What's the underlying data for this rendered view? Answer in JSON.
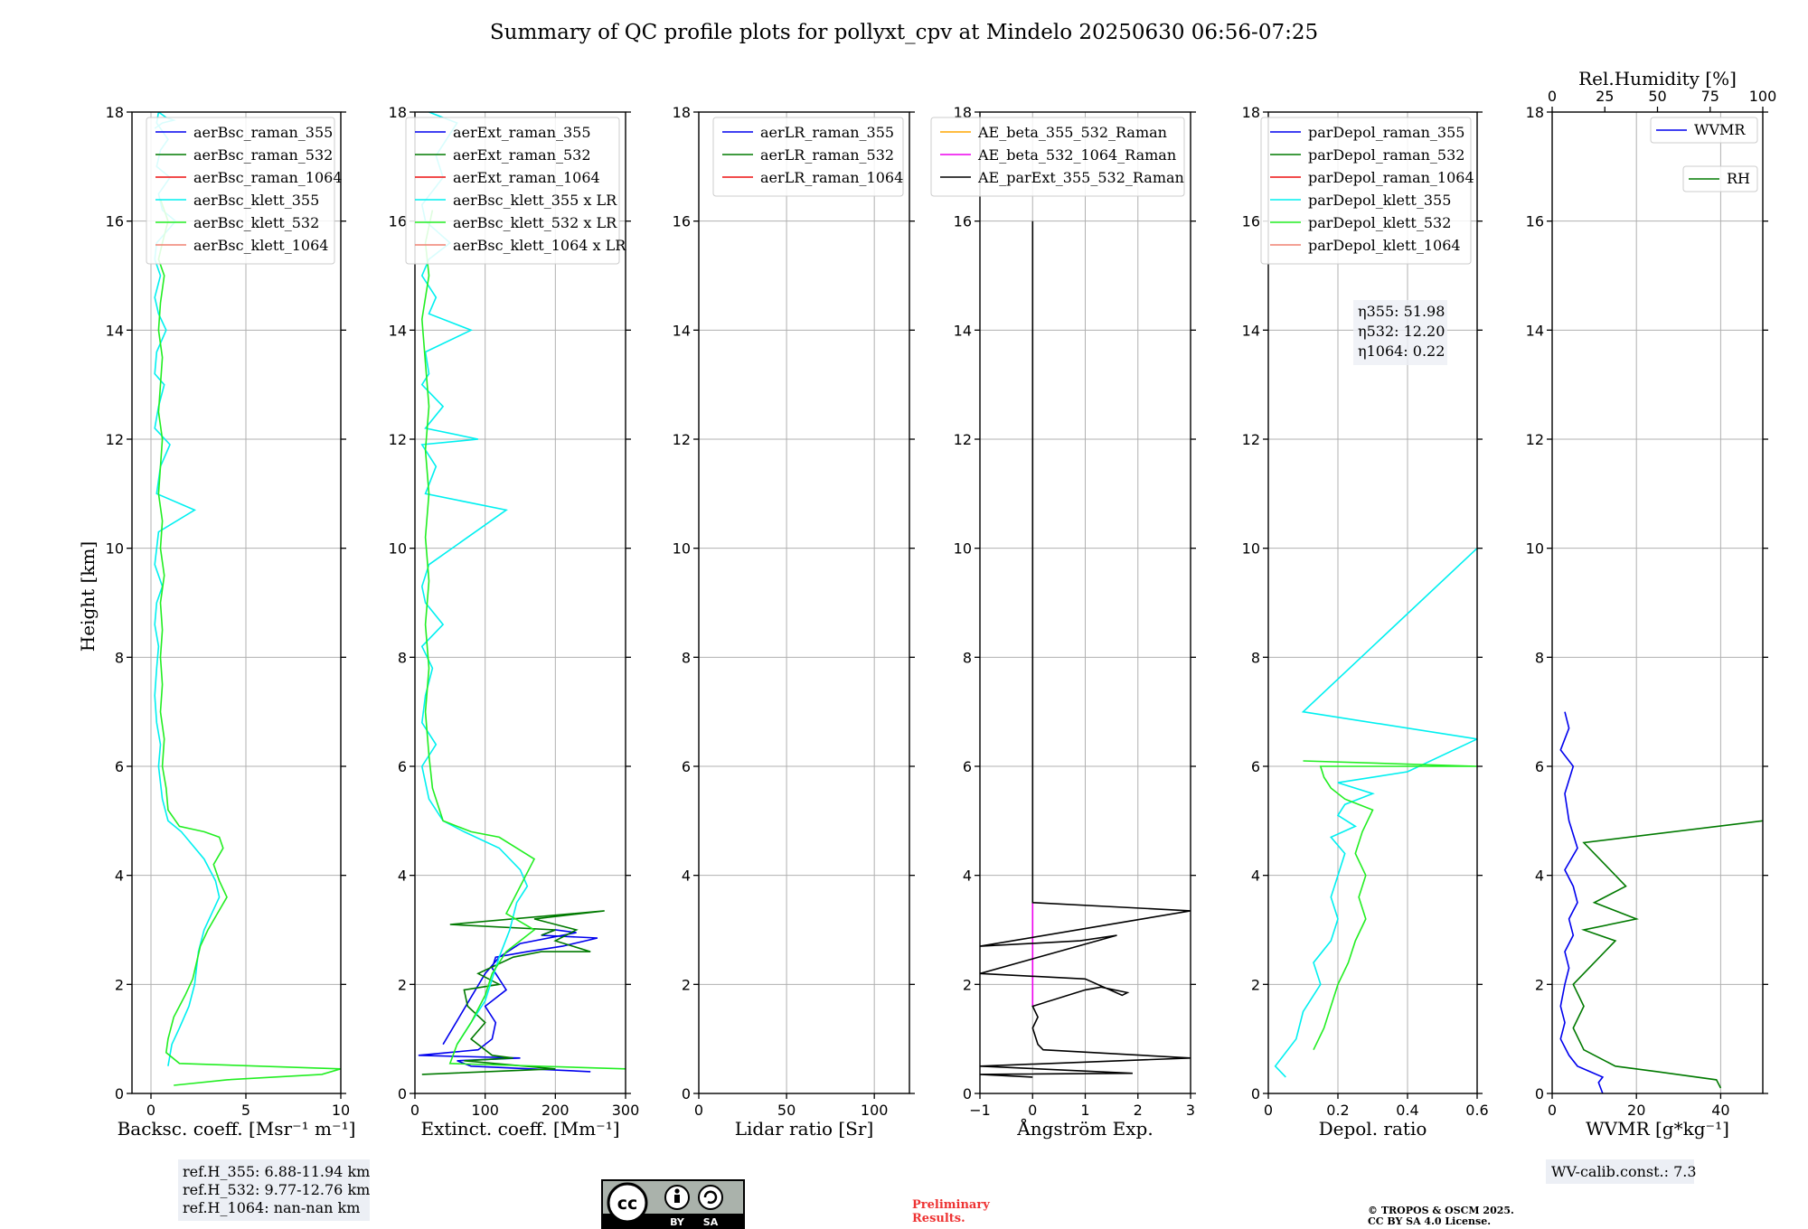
{
  "title": "Summary of QC profile plots for pollyxt_cpv at Mindelo 20250630 06:56-07:25",
  "colors": {
    "blue": "#0000ee",
    "green": "#007a00",
    "red": "#ee1111",
    "cyan": "#00f0f0",
    "lime": "#22ee22",
    "salmon": "#f08070",
    "orange": "#ffa500",
    "magenta": "#ee00ee",
    "black": "#000000"
  },
  "footer": {
    "ref_heights": [
      "ref.H_355: 6.88-11.94 km",
      "ref.H_532: 9.77-12.76 km",
      "ref.H_1064: nan-nan km"
    ],
    "cc_logo": {
      "cc": "cc",
      "by": "BY",
      "sa": "SA"
    },
    "preliminary": [
      "Preliminary",
      "Results."
    ],
    "copyright": [
      "© TROPOS & OSCM 2025.",
      "CC BY SA 4.0 License."
    ],
    "wv_calib": "WV-calib.const.: 7.3"
  },
  "chart_data": [
    {
      "type": "line",
      "ylabel": "Height [km]",
      "xlabel": "Backsc. coeff. [Msr$^{-1}$ m$^{-1}$]",
      "xlabel_display": "Backsc. coeff. [Msr⁻¹ m⁻¹]",
      "xlim": [
        -1,
        10
      ],
      "ylim": [
        0,
        18
      ],
      "xticks": [
        0,
        5,
        10
      ],
      "yticks": [
        0,
        2,
        4,
        6,
        8,
        10,
        12,
        14,
        16,
        18
      ],
      "legend": "top-right",
      "series": [
        {
          "name": "aerBsc_raman_355",
          "color": "blue",
          "x": [],
          "y": []
        },
        {
          "name": "aerBsc_raman_532",
          "color": "green",
          "x": [],
          "y": []
        },
        {
          "name": "aerBsc_raman_1064",
          "color": "red",
          "x": [],
          "y": []
        },
        {
          "name": "aerBsc_klett_355",
          "color": "cyan",
          "x": [
            0.9,
            1.1,
            1.5,
            2.0,
            2.3,
            2.4,
            2.5,
            2.8,
            3.2,
            3.6,
            3.4,
            2.8,
            1.6,
            0.9,
            0.6,
            0.4,
            0.5,
            0.3,
            0.2,
            0.3,
            0.4,
            0.2,
            0.3,
            0.6,
            0.2,
            0.4,
            2.3,
            0.3,
            0.5,
            1.0,
            0.2,
            0.4,
            0.7,
            0.2,
            0.3,
            0.8,
            0.4,
            0.2,
            0.5,
            0.2,
            0.3,
            1.3,
            0.6,
            0.4,
            1.0,
            0.3,
            0.5,
            0.9,
            0.3,
            0.4,
            0.6,
            0.8,
            1.2,
            0.6,
            0.2
          ],
          "y": [
            0.5,
            0.9,
            1.2,
            1.6,
            2.0,
            2.3,
            2.6,
            3.0,
            3.3,
            3.6,
            3.9,
            4.3,
            4.8,
            5.0,
            5.4,
            6.0,
            6.4,
            6.8,
            7.3,
            7.8,
            8.2,
            8.6,
            9.0,
            9.3,
            9.7,
            10.3,
            10.7,
            11.0,
            11.5,
            11.9,
            12.2,
            12.6,
            13.0,
            13.2,
            13.6,
            14.0,
            14.3,
            14.6,
            15.0,
            15.3,
            15.6,
            16.0,
            16.2,
            16.5,
            16.8,
            17.0,
            17.3,
            17.5,
            17.8,
            18.0,
            17.95,
            17.9,
            17.85,
            17.8,
            17.7
          ]
        },
        {
          "name": "aerBsc_klett_532",
          "color": "lime",
          "x": [
            1.2,
            4.0,
            9.0,
            10.0,
            1.5,
            0.8,
            0.9,
            1.2,
            1.8,
            2.2,
            2.4,
            2.6,
            3.0,
            3.5,
            4.0,
            3.6,
            3.3,
            3.8,
            3.6,
            2.8,
            1.5,
            0.9,
            0.8,
            0.6,
            0.7,
            0.5,
            0.6,
            0.5,
            0.6,
            0.5,
            0.7,
            0.5,
            0.6,
            0.4,
            0.5,
            0.6,
            0.4,
            0.5,
            0.6,
            0.4,
            0.5,
            0.7,
            0.4,
            0.6,
            0.9,
            0.5
          ],
          "y": [
            0.15,
            0.25,
            0.35,
            0.45,
            0.55,
            0.75,
            1.0,
            1.4,
            1.8,
            2.1,
            2.4,
            2.7,
            3.0,
            3.3,
            3.6,
            3.9,
            4.2,
            4.5,
            4.7,
            4.8,
            4.9,
            5.2,
            5.6,
            6.0,
            6.5,
            7.0,
            7.5,
            8.0,
            8.5,
            9.0,
            9.5,
            10.0,
            10.5,
            11.0,
            11.5,
            12.0,
            12.5,
            13.0,
            13.5,
            14.0,
            14.5,
            15.0,
            15.3,
            15.6,
            16.0,
            16.4
          ]
        },
        {
          "name": "aerBsc_klett_1064",
          "color": "salmon",
          "x": [],
          "y": []
        }
      ]
    },
    {
      "type": "line",
      "xlabel": "Extinct. coeff. [Mm$^{-1}$]",
      "xlabel_display": "Extinct. coeff. [Mm⁻¹]",
      "xlim": [
        0,
        300
      ],
      "ylim": [
        0,
        18
      ],
      "xticks": [
        0,
        100,
        200,
        300
      ],
      "yticks": [
        0,
        2,
        4,
        6,
        8,
        10,
        12,
        14,
        16,
        18
      ],
      "legend": "top-right",
      "series": [
        {
          "name": "aerExt_raman_355",
          "color": "blue",
          "x": [
            250,
            80,
            60,
            150,
            5,
            90,
            110,
            115,
            100,
            130,
            120,
            110,
            115,
            160,
            210,
            260,
            180,
            200,
            230,
            150,
            120,
            100,
            40
          ],
          "y": [
            0.4,
            0.5,
            0.6,
            0.65,
            0.7,
            0.8,
            1.0,
            1.3,
            1.6,
            1.9,
            2.1,
            2.3,
            2.5,
            2.6,
            2.7,
            2.85,
            2.9,
            3.0,
            2.95,
            2.75,
            2.5,
            2.2,
            0.9
          ]
        },
        {
          "name": "aerExt_raman_532",
          "color": "green",
          "x": [
            10,
            200,
            70,
            140,
            110,
            80,
            100,
            75,
            70,
            120,
            90,
            140,
            180,
            250,
            200,
            230,
            170,
            270,
            50,
            200,
            180
          ],
          "y": [
            0.35,
            0.45,
            0.6,
            0.65,
            0.7,
            1.0,
            1.3,
            1.6,
            1.9,
            2.0,
            2.2,
            2.5,
            2.6,
            2.6,
            2.8,
            3.0,
            3.2,
            3.35,
            3.1,
            3.0,
            2.9
          ]
        },
        {
          "name": "aerExt_raman_1064",
          "color": "red",
          "x": [],
          "y": []
        },
        {
          "name": "aerBsc_klett_355 x LR",
          "color": "cyan",
          "x": [
            60,
            80,
            100,
            110,
            120,
            135,
            145,
            160,
            150,
            120,
            70,
            40,
            20,
            10,
            30,
            10,
            15,
            25,
            10,
            40,
            15,
            10,
            20,
            130,
            15,
            30,
            10,
            90,
            15,
            40,
            10,
            20,
            15,
            80,
            20,
            30,
            10,
            20,
            50,
            15,
            10,
            40,
            30,
            60,
            20
          ],
          "y": [
            0.9,
            1.3,
            1.7,
            2.1,
            2.5,
            3.0,
            3.5,
            3.8,
            4.1,
            4.5,
            4.8,
            5.0,
            5.4,
            6.0,
            6.4,
            6.8,
            7.3,
            7.8,
            8.2,
            8.6,
            9.0,
            9.3,
            9.7,
            10.7,
            11.0,
            11.5,
            11.9,
            12.0,
            12.2,
            12.6,
            13.0,
            13.2,
            13.6,
            14.0,
            14.3,
            14.6,
            15.0,
            15.3,
            15.6,
            16.0,
            16.3,
            16.8,
            17.2,
            17.8,
            18.0
          ]
        },
        {
          "name": "aerBsc_klett_532 x LR",
          "color": "lime",
          "x": [
            300,
            50,
            60,
            80,
            100,
            110,
            130,
            170,
            130,
            150,
            170,
            120,
            80,
            40,
            25,
            20,
            15,
            20,
            15,
            20,
            15,
            20,
            15,
            20,
            15,
            10,
            20,
            15,
            25
          ],
          "y": [
            0.45,
            0.55,
            0.9,
            1.3,
            1.8,
            2.2,
            2.6,
            3.0,
            3.3,
            3.8,
            4.3,
            4.7,
            4.8,
            5.0,
            5.6,
            6.2,
            7.0,
            7.8,
            8.6,
            9.4,
            10.2,
            11.0,
            11.8,
            12.6,
            13.4,
            14.2,
            15.0,
            15.6,
            16.2
          ]
        },
        {
          "name": "aerBsc_klett_1064 x LR",
          "color": "salmon",
          "x": [],
          "y": []
        }
      ]
    },
    {
      "type": "line",
      "xlabel": "Lidar ratio [Sr]",
      "xlim": [
        0,
        120
      ],
      "ylim": [
        0,
        18
      ],
      "xticks": [
        0,
        50,
        100
      ],
      "yticks": [
        0,
        2,
        4,
        6,
        8,
        10,
        12,
        14,
        16,
        18
      ],
      "legend": "top-right",
      "series": [
        {
          "name": "aerLR_raman_355",
          "color": "blue",
          "x": [],
          "y": []
        },
        {
          "name": "aerLR_raman_532",
          "color": "green",
          "x": [],
          "y": []
        },
        {
          "name": "aerLR_raman_1064",
          "color": "red",
          "x": [],
          "y": []
        }
      ]
    },
    {
      "type": "line",
      "xlabel": "Ångström Exp.",
      "xlim": [
        -1,
        3
      ],
      "ylim": [
        0,
        18
      ],
      "xticks": [
        -1,
        0,
        1,
        2,
        3
      ],
      "yticks": [
        0,
        2,
        4,
        6,
        8,
        10,
        12,
        14,
        16,
        18
      ],
      "legend": "top-right",
      "series": [
        {
          "name": "AE_beta_355_532_Raman",
          "color": "orange",
          "x": [],
          "y": []
        },
        {
          "name": "AE_beta_532_1064_Raman",
          "color": "magenta",
          "x": [
            0,
            0,
            0
          ],
          "y": [
            1.6,
            2.5,
            3.5
          ]
        },
        {
          "name": "AE_parExt_355_532_Raman",
          "color": "black",
          "x": [
            0,
            -1,
            1.9,
            -1,
            3,
            0.2,
            0.1,
            0.0,
            0.1,
            0.0,
            1.0,
            1.3,
            1.8,
            1.7,
            1.0,
            -1,
            1.6,
            0.9,
            -1,
            3,
            0,
            0,
            0
          ],
          "y": [
            0.3,
            0.35,
            0.37,
            0.5,
            0.65,
            0.8,
            0.9,
            1.2,
            1.4,
            1.6,
            1.9,
            1.95,
            1.85,
            1.8,
            2.1,
            2.2,
            2.9,
            2.8,
            2.7,
            3.35,
            3.5,
            10.0,
            16.0
          ]
        }
      ]
    },
    {
      "type": "line",
      "xlabel": "Depol. ratio",
      "xlim": [
        0,
        0.6
      ],
      "ylim": [
        0,
        18
      ],
      "xticks": [
        0.0,
        0.2,
        0.4,
        0.6
      ],
      "yticks": [
        0,
        2,
        4,
        6,
        8,
        10,
        12,
        14,
        16,
        18
      ],
      "legend": "top-right",
      "annotation": [
        "η355: 51.98",
        "η532: 12.20",
        "η1064: 0.22"
      ],
      "series": [
        {
          "name": "parDepol_raman_355",
          "color": "blue",
          "x": [],
          "y": []
        },
        {
          "name": "parDepol_raman_532",
          "color": "green",
          "x": [],
          "y": []
        },
        {
          "name": "parDepol_raman_1064",
          "color": "red",
          "x": [],
          "y": []
        },
        {
          "name": "parDepol_klett_355",
          "color": "cyan",
          "x": [
            0.05,
            0.02,
            0.08,
            0.1,
            0.15,
            0.13,
            0.18,
            0.2,
            0.18,
            0.2,
            0.22,
            0.18,
            0.25,
            0.2,
            0.22,
            0.3,
            0.2,
            0.4,
            0.6,
            0.1,
            0.6
          ],
          "y": [
            0.3,
            0.5,
            1.0,
            1.5,
            2.0,
            2.4,
            2.8,
            3.2,
            3.6,
            4.0,
            4.4,
            4.7,
            4.9,
            5.1,
            5.3,
            5.5,
            5.7,
            5.9,
            6.5,
            7.0,
            10.0
          ]
        },
        {
          "name": "parDepol_klett_532",
          "color": "lime",
          "x": [
            0.13,
            0.16,
            0.18,
            0.2,
            0.23,
            0.25,
            0.28,
            0.26,
            0.28,
            0.25,
            0.27,
            0.3,
            0.22,
            0.18,
            0.16,
            0.15,
            0.6,
            0.1
          ],
          "y": [
            0.8,
            1.2,
            1.6,
            2.0,
            2.4,
            2.8,
            3.2,
            3.6,
            4.0,
            4.4,
            4.8,
            5.2,
            5.4,
            5.6,
            5.8,
            6.0,
            6.0,
            6.1
          ]
        },
        {
          "name": "parDepol_klett_1064",
          "color": "salmon",
          "x": [],
          "y": []
        }
      ]
    },
    {
      "type": "line",
      "xlabel": "WVMR [$g*kg^{-1}$]",
      "xlabel_display": "WVMR [g*kg⁻¹]",
      "x2label": "Rel.Humidity [%]",
      "xlim": [
        0,
        50
      ],
      "x2lim": [
        0,
        100
      ],
      "ylim": [
        0,
        18
      ],
      "xticks": [
        0,
        20,
        40
      ],
      "x2ticks": [
        0,
        25,
        50,
        75,
        100
      ],
      "yticks": [
        0,
        2,
        4,
        6,
        8,
        10,
        12,
        14,
        16,
        18
      ],
      "legend": "top-right",
      "series": [
        {
          "name": "WVMR",
          "color": "blue",
          "axis": "x",
          "x": [
            12,
            11,
            12,
            9,
            6,
            4,
            2,
            3,
            2,
            3,
            4,
            3,
            5,
            4,
            6,
            5,
            3,
            6,
            4,
            3,
            5,
            2,
            4,
            3
          ],
          "y": [
            0.0,
            0.2,
            0.3,
            0.4,
            0.5,
            0.7,
            1.0,
            1.3,
            1.6,
            2.0,
            2.3,
            2.6,
            2.9,
            3.2,
            3.5,
            3.8,
            4.1,
            4.5,
            5.0,
            5.5,
            6.0,
            6.3,
            6.7,
            7.0
          ]
        },
        {
          "name": "RH",
          "color": "green",
          "axis": "x2",
          "x": [
            80,
            78,
            50,
            30,
            25,
            15,
            10,
            15,
            10,
            20,
            30,
            15,
            40,
            20,
            35,
            25,
            15,
            100
          ],
          "y": [
            0.1,
            0.25,
            0.4,
            0.5,
            0.6,
            0.8,
            1.2,
            1.6,
            2.0,
            2.4,
            2.8,
            3.0,
            3.2,
            3.5,
            3.8,
            4.2,
            4.6,
            5.0
          ]
        }
      ]
    }
  ]
}
